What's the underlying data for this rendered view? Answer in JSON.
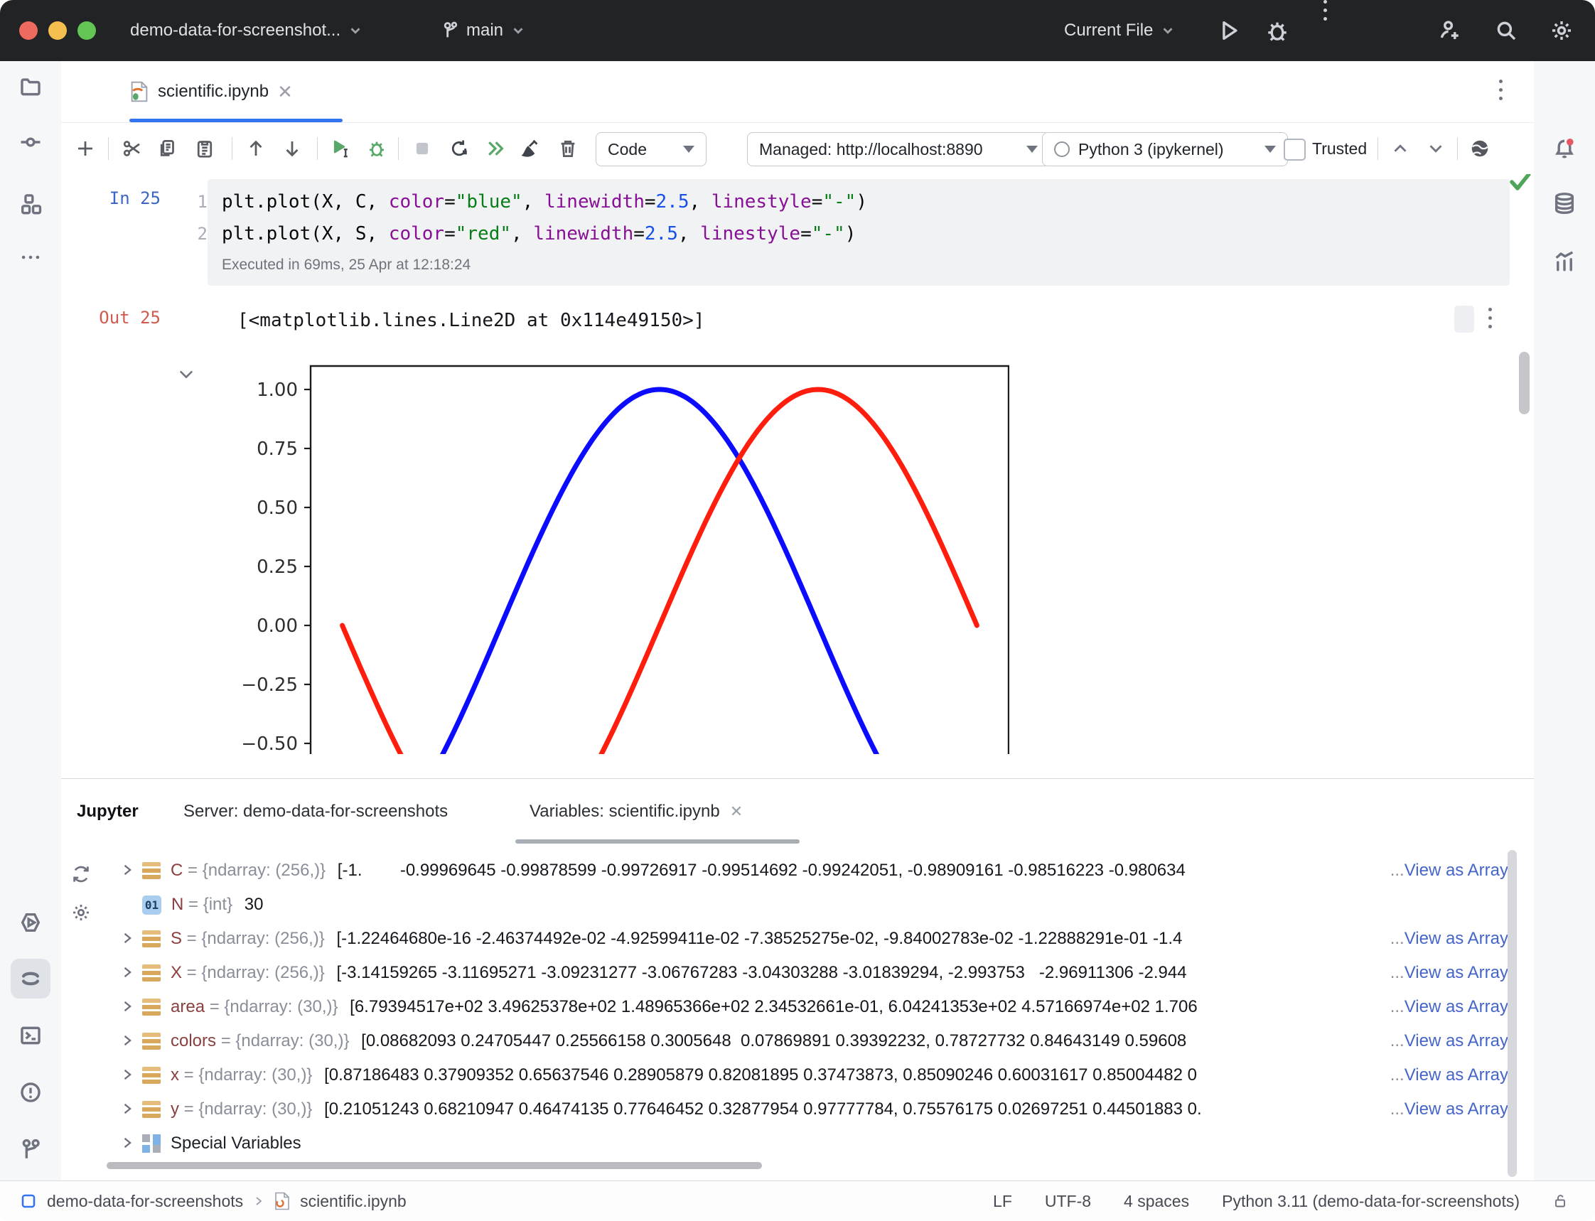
{
  "titlebar": {
    "project": "demo-data-for-screenshot...",
    "branch": "main",
    "run_config": "Current File"
  },
  "tabbar": {
    "file_tab": "scientific.ipynb"
  },
  "toolbar": {
    "cell_type": "Code",
    "server": "Managed: http://localhost:8890",
    "kernel": "Python 3 (ipykernel)",
    "trusted": "Trusted"
  },
  "cell": {
    "in_label": "In 25",
    "lines": [
      {
        "num": "1",
        "tokens": [
          [
            "plt.plot(X, C, ",
            "plain"
          ],
          [
            "color",
            "param"
          ],
          [
            "=",
            "plain"
          ],
          [
            "\"blue\"",
            "str"
          ],
          [
            ", ",
            "plain"
          ],
          [
            "linewidth",
            "param"
          ],
          [
            "=",
            "plain"
          ],
          [
            "2.5",
            "num"
          ],
          [
            ", ",
            "plain"
          ],
          [
            "linestyle",
            "param"
          ],
          [
            "=",
            "plain"
          ],
          [
            "\"-\"",
            "str"
          ],
          [
            ")",
            "plain"
          ]
        ]
      },
      {
        "num": "2",
        "tokens": [
          [
            "plt.plot(X, S, ",
            "plain"
          ],
          [
            "color",
            "param"
          ],
          [
            "=",
            "plain"
          ],
          [
            "\"red\"",
            "str"
          ],
          [
            ", ",
            "plain"
          ],
          [
            "linewidth",
            "param"
          ],
          [
            "=",
            "plain"
          ],
          [
            "2.5",
            "num"
          ],
          [
            ", ",
            "plain"
          ],
          [
            "linestyle",
            "param"
          ],
          [
            "=",
            "plain"
          ],
          [
            "\"-\"",
            "str"
          ],
          [
            ")",
            "plain"
          ]
        ]
      }
    ],
    "executed": "Executed in 69ms, 25 Apr at 12:18:24",
    "out_label": "Out 25",
    "out_value": "[<matplotlib.lines.Line2D at 0x114e49150>]"
  },
  "chart_data": {
    "type": "line",
    "title": "",
    "xlabel": "",
    "ylabel": "",
    "x_domain": [
      -3.14159265,
      3.14159265
    ],
    "points": 256,
    "series": [
      {
        "name": "C",
        "function": "cos",
        "color": "#0b0bff",
        "linewidth": 2.5,
        "linestyle": "-"
      },
      {
        "name": "S",
        "function": "sin",
        "color": "#ff1d0e",
        "linewidth": 2.5,
        "linestyle": "-"
      }
    ],
    "yticks": [
      1.0,
      0.75,
      0.5,
      0.25,
      0.0,
      -0.25,
      -0.5
    ],
    "ytick_labels": [
      "1.00",
      "0.75",
      "0.50",
      "0.25",
      "0.00",
      "−0.25",
      "−0.50"
    ],
    "ylim_top": 1.1,
    "grid": false,
    "legend": "none"
  },
  "panel": {
    "title": "Jupyter",
    "tabs": [
      {
        "label": "Server: demo-data-for-screenshots"
      },
      {
        "label": "Variables: scientific.ipynb"
      }
    ],
    "int_badge": "01",
    "ellipsis": "...",
    "variables": [
      {
        "icon": "ndarray",
        "expand": true,
        "name": "C",
        "eq": " = ",
        "type": "{ndarray: (256,)}",
        "value": "[-1.        -0.99969645 -0.99878599 -0.99726917 -0.99514692 -0.99242051, -0.98909161 -0.98516223 -0.980634",
        "link": "View as Array"
      },
      {
        "icon": "int",
        "expand": false,
        "name": "N",
        "eq": " = ",
        "type": "{int}",
        "value": "30"
      },
      {
        "icon": "ndarray",
        "expand": true,
        "name": "S",
        "eq": " = ",
        "type": "{ndarray: (256,)}",
        "value": "[-1.22464680e-16 -2.46374492e-02 -4.92599411e-02 -7.38525275e-02, -9.84002783e-02 -1.22888291e-01 -1.4",
        "link": "View as Array"
      },
      {
        "icon": "ndarray",
        "expand": true,
        "name": "X",
        "eq": " = ",
        "type": "{ndarray: (256,)}",
        "value": "[-3.14159265 -3.11695271 -3.09231277 -3.06767283 -3.04303288 -3.01839294, -2.993753   -2.96911306 -2.944",
        "link": "View as Array"
      },
      {
        "icon": "ndarray",
        "expand": true,
        "name": "area",
        "eq": " = ",
        "type": "{ndarray: (30,)}",
        "value": "[6.79394517e+02 3.49625378e+02 1.48965366e+02 2.34532661e-01, 6.04241353e+02 4.57166974e+02 1.706",
        "link": "View as Array"
      },
      {
        "icon": "ndarray",
        "expand": true,
        "name": "colors",
        "eq": " = ",
        "type": "{ndarray: (30,)}",
        "value": "[0.08682093 0.24705447 0.25566158 0.3005648  0.07869891 0.39392232, 0.78727732 0.84643149 0.59608",
        "link": "View as Array"
      },
      {
        "icon": "ndarray",
        "expand": true,
        "name": "x",
        "eq": " = ",
        "type": "{ndarray: (30,)}",
        "value": "[0.87186483 0.37909352 0.65637546 0.28905879 0.82081895 0.37473873, 0.85090246 0.60031617 0.85004482 0",
        "link": "View as Array"
      },
      {
        "icon": "ndarray",
        "expand": true,
        "name": "y",
        "eq": " = ",
        "type": "{ndarray: (30,)}",
        "value": "[0.21051243 0.68210947 0.46474135 0.77646452 0.32877954 0.97777784, 0.75576175 0.02697251 0.44501883 0.",
        "link": "View as Array"
      },
      {
        "icon": "special",
        "expand": true,
        "name": "Special Variables"
      }
    ]
  },
  "statusbar": {
    "project": "demo-data-for-screenshots",
    "file": "scientific.ipynb",
    "line_sep": "LF",
    "encoding": "UTF-8",
    "indent": "4 spaces",
    "interpreter": "Python 3.11 (demo-data-for-screenshots)"
  }
}
